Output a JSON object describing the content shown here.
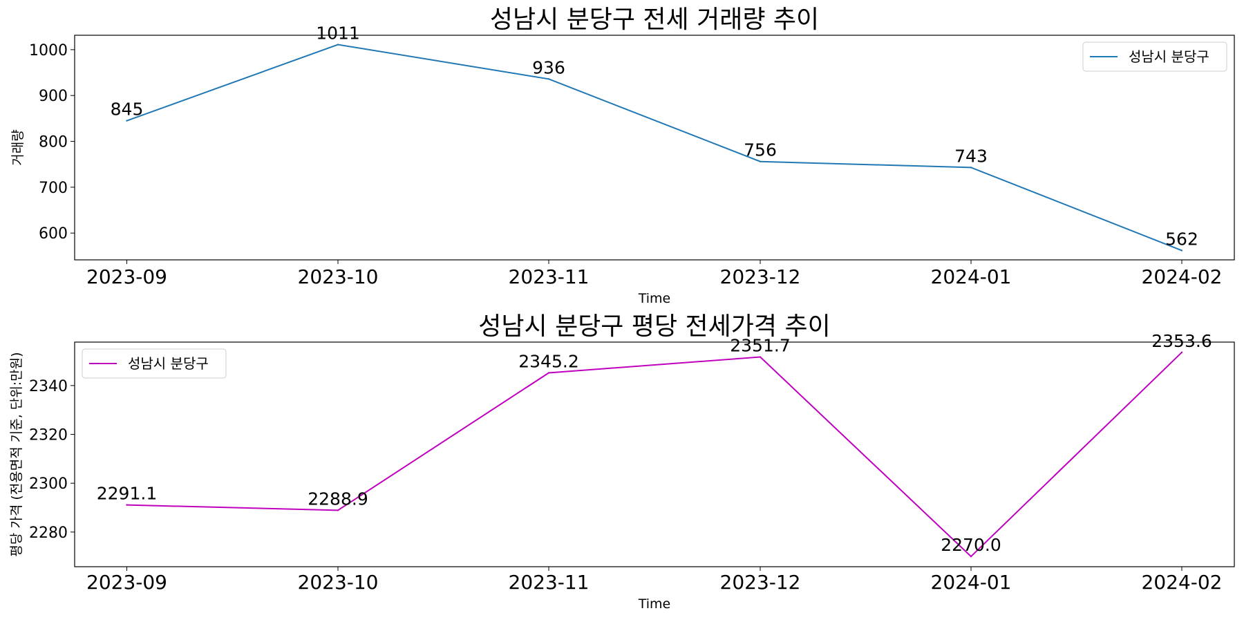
{
  "chart_data": [
    {
      "type": "line",
      "title": "성남시 분당구 전세 거래량 추이",
      "xlabel": "Time",
      "ylabel": "거래량",
      "categories": [
        "2023-09",
        "2023-10",
        "2023-11",
        "2023-12",
        "2024-01",
        "2024-02"
      ],
      "yticks": [
        600,
        700,
        800,
        900,
        1000
      ],
      "ylim": [
        541.55,
        1031.45
      ],
      "grid": false,
      "legend_position": "top-right",
      "series": [
        {
          "name": "성남시 분당구",
          "color": "#1f77b4",
          "values": [
            845,
            1011,
            936,
            756,
            743,
            562
          ],
          "labels": [
            "845",
            "1011",
            "936",
            "756",
            "743",
            "562"
          ]
        }
      ]
    },
    {
      "type": "line",
      "title": "성남시 분당구 평당 전세가격 추이",
      "xlabel": "Time",
      "ylabel": "평당 가격 (전용면적 기준, 단위:만원)",
      "categories": [
        "2023-09",
        "2023-10",
        "2023-11",
        "2023-12",
        "2024-01",
        "2024-02"
      ],
      "yticks": [
        2280,
        2300,
        2320,
        2340
      ],
      "ylim": [
        2265.8,
        2357.8
      ],
      "grid": false,
      "legend_position": "top-left",
      "series": [
        {
          "name": "성남시 분당구",
          "color": "#bf00bf",
          "values": [
            2291.1,
            2288.9,
            2345.2,
            2351.7,
            2270.0,
            2353.6
          ],
          "labels": [
            "2291.1",
            "2288.9",
            "2345.2",
            "2351.7",
            "2270.0",
            "2353.6"
          ]
        }
      ]
    }
  ]
}
